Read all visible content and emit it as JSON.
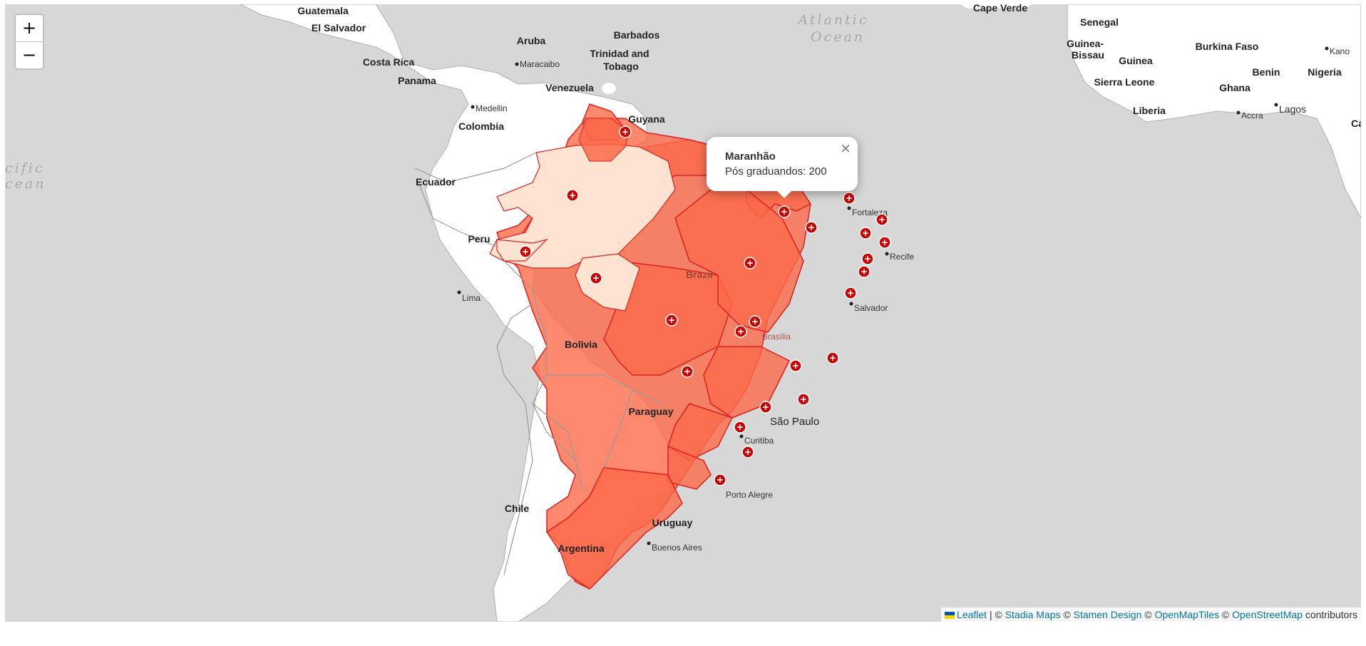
{
  "zoom": {
    "in_label": "+",
    "out_label": "−"
  },
  "popup": {
    "title": "Maranhão",
    "body": "Pós graduandos: 200",
    "close": "×"
  },
  "attribution": {
    "leaflet": "Leaflet",
    "sep": " | © ",
    "stadia": "Stadia Maps",
    "c1": " © ",
    "stamen": "Stamen Design",
    "c2": " © ",
    "omt": "OpenMapTiles",
    "c3": " © ",
    "osm": "OpenStreetMap",
    "tail": " contributors"
  },
  "countries": [
    "Guatemala",
    "El Salvador",
    "Costa Rica",
    "Panama",
    "Aruba",
    "Barbados",
    "Trinidad and",
    "Tobago",
    "Venezuela",
    "Guyana",
    "Colombia",
    "Ecuador",
    "Peru",
    "Bolivia",
    "Brazil",
    "Paraguay",
    "Chile",
    "Uruguay",
    "Argentina",
    "Cape Verde",
    "Senegal",
    "Guinea-",
    "Bissau",
    "Guinea",
    "Burkina Faso",
    "Sierra Leone",
    "Ghana",
    "Benin",
    "Nigeria",
    "Liberia",
    "Ca"
  ],
  "cities": [
    "Maracaibo",
    "Medellin",
    "Lima",
    "Fortaleza",
    "Recife",
    "Salvador",
    "Brasília",
    "São Paulo",
    "Curitiba",
    "Porto Alegre",
    "Buenos Aires",
    "Kano",
    "Accra",
    "Lagos"
  ],
  "oceans": [
    "Atlantic",
    "Ocean",
    "cific",
    "cean"
  ],
  "colors": {
    "water": "#d7d7d7",
    "land": "#ffffff",
    "high": "#fb6a4a",
    "low": "#fee3d1",
    "marker": "#cc0000"
  },
  "markers_icon": "plus-circle-icon"
}
